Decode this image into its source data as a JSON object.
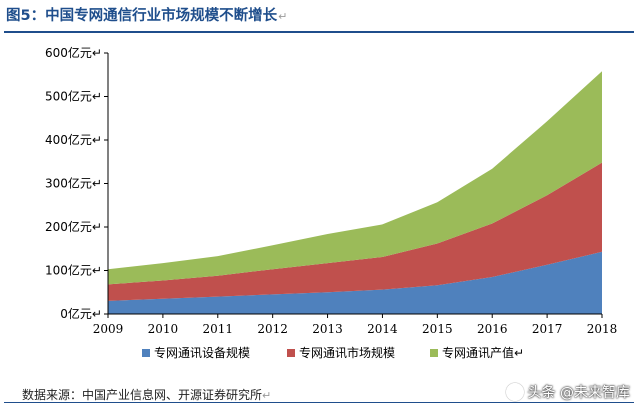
{
  "figure": {
    "title": "图5：中国专网通信行业市场规模不断增长",
    "source": "数据来源：中国产业信息网、开源证券研究所",
    "watermark": "头条 @未来智库",
    "paragraph_mark": "↵"
  },
  "chart_data": {
    "type": "area",
    "stacked": true,
    "categories": [
      "2009",
      "2010",
      "2011",
      "2012",
      "2013",
      "2014",
      "2015",
      "2016",
      "2017",
      "2018"
    ],
    "series": [
      {
        "name": "专网通讯设备规模",
        "color": "#4f81bd",
        "values": [
          30,
          35,
          40,
          45,
          50,
          56,
          66,
          85,
          113,
          143
        ]
      },
      {
        "name": "专网通讯市场规模",
        "color": "#c0504d",
        "values": [
          38,
          42,
          48,
          58,
          67,
          75,
          96,
          123,
          160,
          205
        ]
      },
      {
        "name": "专网通讯产值",
        "color": "#9bbb59",
        "values": [
          35,
          40,
          45,
          55,
          67,
          75,
          95,
          126,
          170,
          210
        ]
      }
    ],
    "yticks": [
      "0亿元",
      "100亿元",
      "200亿元",
      "300亿元",
      "400亿元",
      "500亿元",
      "600亿元"
    ],
    "ylim": [
      0,
      600
    ],
    "grid": false,
    "legend_position": "bottom"
  }
}
